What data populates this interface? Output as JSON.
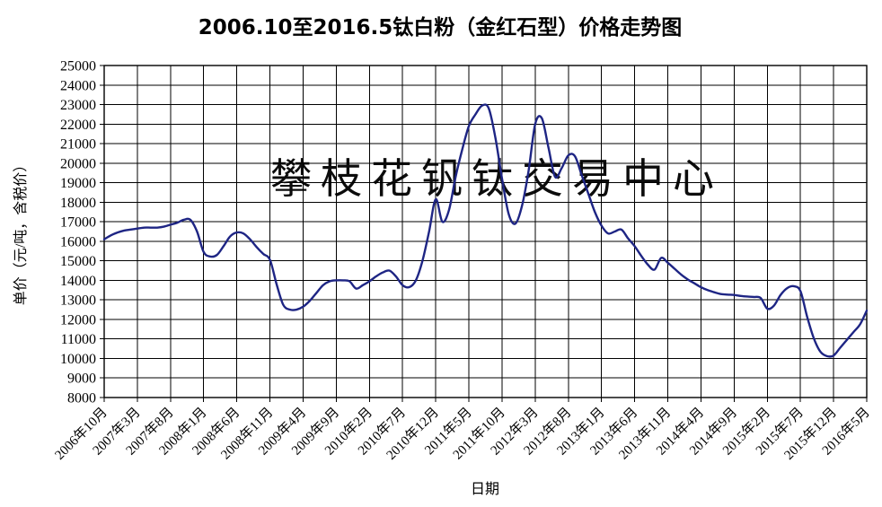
{
  "page": {
    "background": "#ffffff"
  },
  "chart_data": {
    "type": "line",
    "title": "2006.10至2016.5钛白粉（金红石型）价格走势图",
    "xlabel": "日期",
    "ylabel": "单价（元/吨，含税价）",
    "watermark": "攀枝花钒钛交易中心",
    "line_color": "#1e2584",
    "watermark_color": "#c6c8e8",
    "grid_color": "#000000",
    "grid": true,
    "legend": "none",
    "ylim": [
      8000,
      25000
    ],
    "ytick_step": 1000,
    "yticks": [
      25000,
      24000,
      23000,
      22000,
      21000,
      20000,
      19000,
      18000,
      17000,
      16000,
      15000,
      14000,
      13000,
      12000,
      11000,
      10000,
      9000,
      8000
    ],
    "x_unit": "month",
    "x_start": "2006年10月",
    "x_end": "2016年5月",
    "x_tick_interval_months": 5,
    "x_tick_labels": [
      "2006年10月",
      "2007年3月",
      "2007年8月",
      "2008年1月",
      "2008年6月",
      "2008年11月",
      "2009年4月",
      "2009年9月",
      "2010年2月",
      "2010年7月",
      "2010年12月",
      "2011年5月",
      "2011年10月",
      "2012年3月",
      "2012年8月",
      "2013年1月",
      "2013年6月",
      "2013年11月",
      "2014年4月",
      "2014年9月",
      "2015年2月",
      "2015年7月",
      "2015年12月",
      "2016年5月"
    ],
    "series": [
      {
        "name": "price",
        "values": [
          16100,
          16300,
          16450,
          16550,
          16600,
          16650,
          16700,
          16700,
          16700,
          16750,
          16850,
          16950,
          17100,
          17100,
          16500,
          15450,
          15220,
          15300,
          15750,
          16250,
          16450,
          16400,
          16100,
          15700,
          15350,
          15050,
          13800,
          12750,
          12500,
          12500,
          12650,
          12950,
          13350,
          13750,
          13950,
          14000,
          14000,
          13950,
          13580,
          13750,
          13950,
          14200,
          14400,
          14500,
          14200,
          13750,
          13650,
          14000,
          15000,
          16500,
          18150,
          17000,
          17600,
          19300,
          20700,
          21900,
          22500,
          22950,
          22800,
          21300,
          19200,
          17400,
          16900,
          17800,
          19600,
          22000,
          22300,
          20800,
          19300,
          19750,
          20400,
          20350,
          19400,
          18450,
          17500,
          16800,
          16400,
          16500,
          16600,
          16150,
          15750,
          15250,
          14800,
          14550,
          15150,
          14900,
          14600,
          14300,
          14050,
          13850,
          13650,
          13500,
          13390,
          13300,
          13270,
          13250,
          13200,
          13170,
          13150,
          13100,
          12550,
          12700,
          13250,
          13600,
          13700,
          13450,
          12150,
          11050,
          10350,
          10120,
          10150,
          10550,
          10950,
          11350,
          11750,
          12450
        ]
      }
    ]
  }
}
